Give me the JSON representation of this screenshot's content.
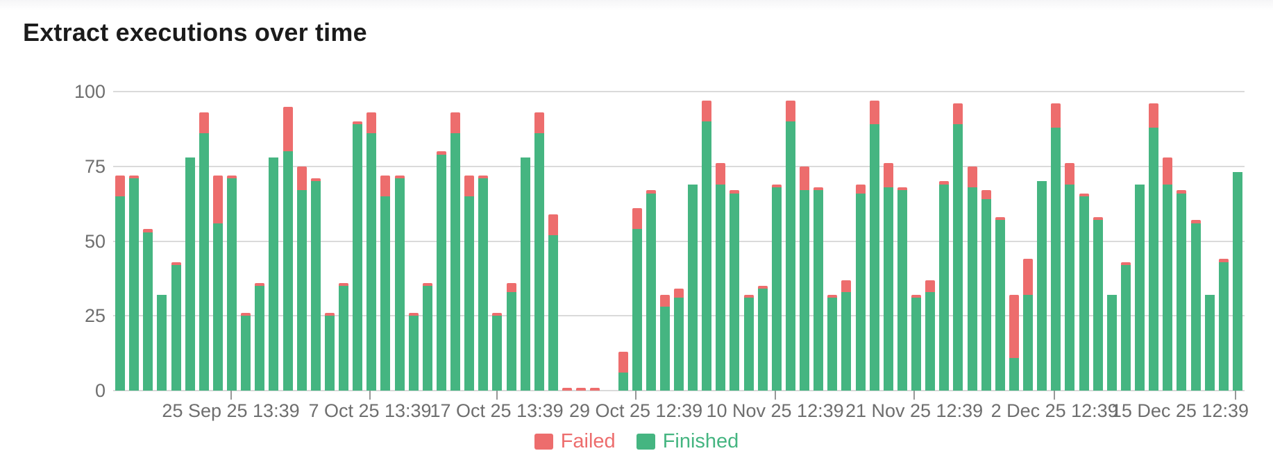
{
  "page": {
    "title": "Extract executions over time"
  },
  "legend": {
    "items": [
      {
        "label": "Failed",
        "color": "#ed6d6d"
      },
      {
        "label": "Finished",
        "color": "#45b581"
      }
    ]
  },
  "colors": {
    "grid": "#dadada",
    "axis_text": "#6e6e6e",
    "tick": "#979797",
    "failed": "#ed6d6d",
    "finished": "#45b581"
  },
  "chart_data": {
    "type": "bar",
    "stacked": true,
    "title": "Extract executions over time",
    "xlabel": "",
    "ylabel": "",
    "ylim": [
      0,
      100
    ],
    "yticks": [
      0,
      25,
      50,
      75,
      100
    ],
    "grid": true,
    "legend_position": "bottom",
    "xticks": [
      {
        "label": "25 Sep 25 13:39",
        "pos": 0.104
      },
      {
        "label": "7 Oct 25 13:39",
        "pos": 0.227
      },
      {
        "label": "17 Oct 25 13:39",
        "pos": 0.339
      },
      {
        "label": "29 Oct 25 12:39",
        "pos": 0.462
      },
      {
        "label": "10 Nov 25 12:39",
        "pos": 0.585
      },
      {
        "label": "21 Nov 25 12:39",
        "pos": 0.708
      },
      {
        "label": "2 Dec 25 12:39",
        "pos": 0.832
      },
      {
        "label": "15 Dec 25 12:39",
        "pos": 0.992
      }
    ],
    "series": [
      {
        "name": "Finished",
        "color": "#45b581",
        "values": [
          65,
          71,
          53,
          32,
          42,
          78,
          86,
          56,
          71,
          25,
          35,
          78,
          80,
          67,
          70,
          25,
          35,
          89,
          86,
          65,
          71,
          25,
          35,
          79,
          86,
          65,
          71,
          25,
          33,
          78,
          86,
          52,
          0,
          0,
          0,
          0,
          6,
          54,
          66,
          28,
          31,
          69,
          90,
          69,
          66,
          31,
          34,
          68,
          90,
          67,
          67,
          31,
          33,
          66,
          89,
          68,
          67,
          31,
          33,
          69,
          89,
          68,
          64,
          57,
          11,
          32,
          70,
          88,
          69,
          65,
          57,
          32,
          42,
          69,
          88,
          69,
          66,
          56,
          32,
          43,
          73
        ]
      },
      {
        "name": "Failed",
        "color": "#ed6d6d",
        "values": [
          7,
          1,
          1,
          0,
          1,
          0,
          7,
          16,
          1,
          1,
          1,
          0,
          15,
          8,
          1,
          1,
          1,
          1,
          7,
          7,
          1,
          1,
          1,
          1,
          7,
          7,
          1,
          1,
          3,
          0,
          7,
          7,
          1,
          1,
          1,
          0,
          7,
          7,
          1,
          4,
          3,
          0,
          7,
          7,
          1,
          1,
          1,
          1,
          7,
          8,
          1,
          1,
          4,
          3,
          8,
          8,
          1,
          1,
          4,
          1,
          7,
          7,
          3,
          1,
          21,
          12,
          0,
          8,
          7,
          1,
          1,
          0,
          1,
          0,
          8,
          9,
          1,
          1,
          0,
          1,
          0
        ]
      }
    ]
  }
}
